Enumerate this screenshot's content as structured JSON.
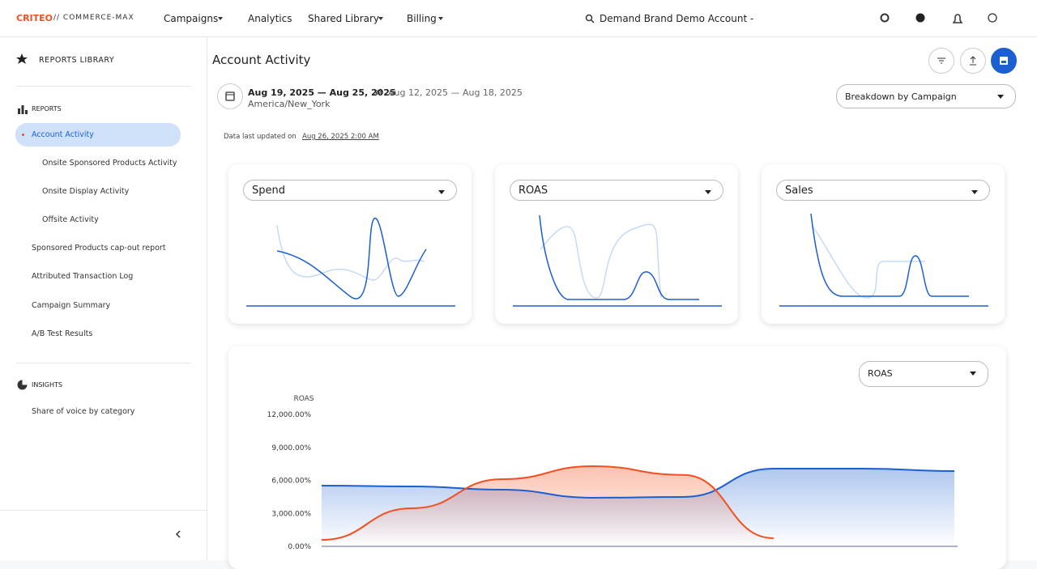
{
  "header": {
    "logo": "CRITEO",
    "logo_suffix": "// COMMERCE-MAX",
    "nav": [
      "Campaigns",
      "Analytics",
      "Shared Library",
      "Billing"
    ],
    "account": "Demand Brand Demo Account -"
  },
  "sidebar": {
    "library": "REPORTS LIBRARY",
    "reports_heading": "REPORTS",
    "reports": [
      "Account Activity",
      "Onsite Sponsored Products Activity",
      "Onsite Display Activity",
      "Offsite Activity",
      "Sponsored Products cap-out report",
      "Attributed Transaction Log",
      "Campaign Summary",
      "A/B Test Results"
    ],
    "insights_heading": "INSIGHTS",
    "insights": [
      "Share of voice by category"
    ]
  },
  "page": {
    "title": "Account Activity",
    "date_range": "Aug 19, 2025 — Aug 25, 2025",
    "compare_range": "Aug 12, 2025 — Aug 18, 2025",
    "timezone": "America/New_York",
    "updated_label": "Data last updated on",
    "updated_at": "Aug 26, 2025 2:00 AM",
    "breakdown": "Breakdown by Campaign"
  },
  "metric_cards": [
    "Spend",
    "ROAS",
    "Sales"
  ],
  "chart_data": {
    "type": "area",
    "metric": "ROAS",
    "ylabel": "ROAS",
    "categories": [
      null,
      null,
      null,
      null,
      null,
      null,
      null,
      null
    ],
    "series": [
      {
        "color": "#1c5fd1",
        "values": [
          5520,
          5450,
          5150,
          4420,
          4490,
          7070,
          7070,
          6850
        ]
      },
      {
        "color": "#f2501f",
        "values": [
          590,
          3460,
          6110,
          7290,
          6500,
          740,
          null,
          null
        ]
      }
    ],
    "ylim": [
      0,
      12000
    ],
    "yticks": [
      {
        "value": 0,
        "label": "0.00%"
      },
      {
        "value": 3000,
        "label": "3,000.00%"
      },
      {
        "value": 6000,
        "label": "6,000.00%"
      },
      {
        "value": 9000,
        "label": "9,000.00%"
      },
      {
        "value": 12000,
        "label": "12,000.00%"
      }
    ]
  }
}
